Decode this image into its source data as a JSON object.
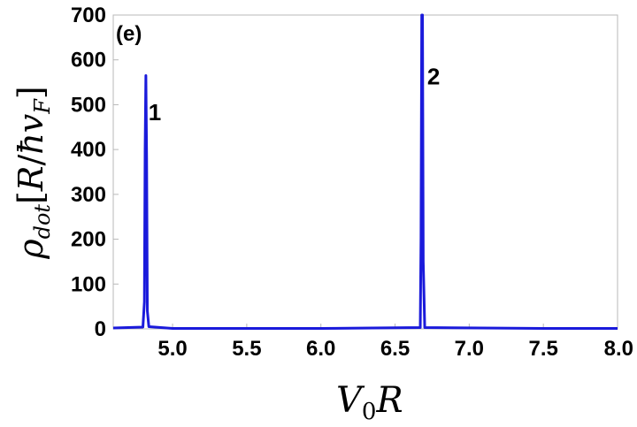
{
  "chart_data": {
    "type": "line",
    "panel_label": "(e)",
    "xlabel": "V0R",
    "ylabel": "ρdot[R/ħvF]",
    "xlim": [
      4.6,
      8.0
    ],
    "ylim": [
      0,
      700
    ],
    "x_ticks": [
      "5.0",
      "5.5",
      "6.0",
      "6.5",
      "7.0",
      "7.5",
      "8.0"
    ],
    "y_ticks": [
      "0",
      "100",
      "200",
      "300",
      "400",
      "500",
      "600",
      "700"
    ],
    "grid": false,
    "line_color": "#1a1adb",
    "series": [
      {
        "x": [
          4.6,
          4.8,
          4.81,
          4.815,
          4.82,
          4.825,
          4.83,
          4.84,
          5.0,
          6.0,
          6.67,
          6.675,
          6.68,
          6.685,
          6.69,
          6.7,
          7.5,
          8.0
        ],
        "y": [
          2,
          4,
          60,
          400,
          565,
          380,
          40,
          5,
          1,
          1,
          3,
          200,
          700,
          700,
          150,
          3,
          1,
          1
        ]
      }
    ],
    "annotations": [
      {
        "text": "1",
        "x": 4.88,
        "y": 465
      },
      {
        "text": "2",
        "x": 6.76,
        "y": 545
      }
    ]
  }
}
